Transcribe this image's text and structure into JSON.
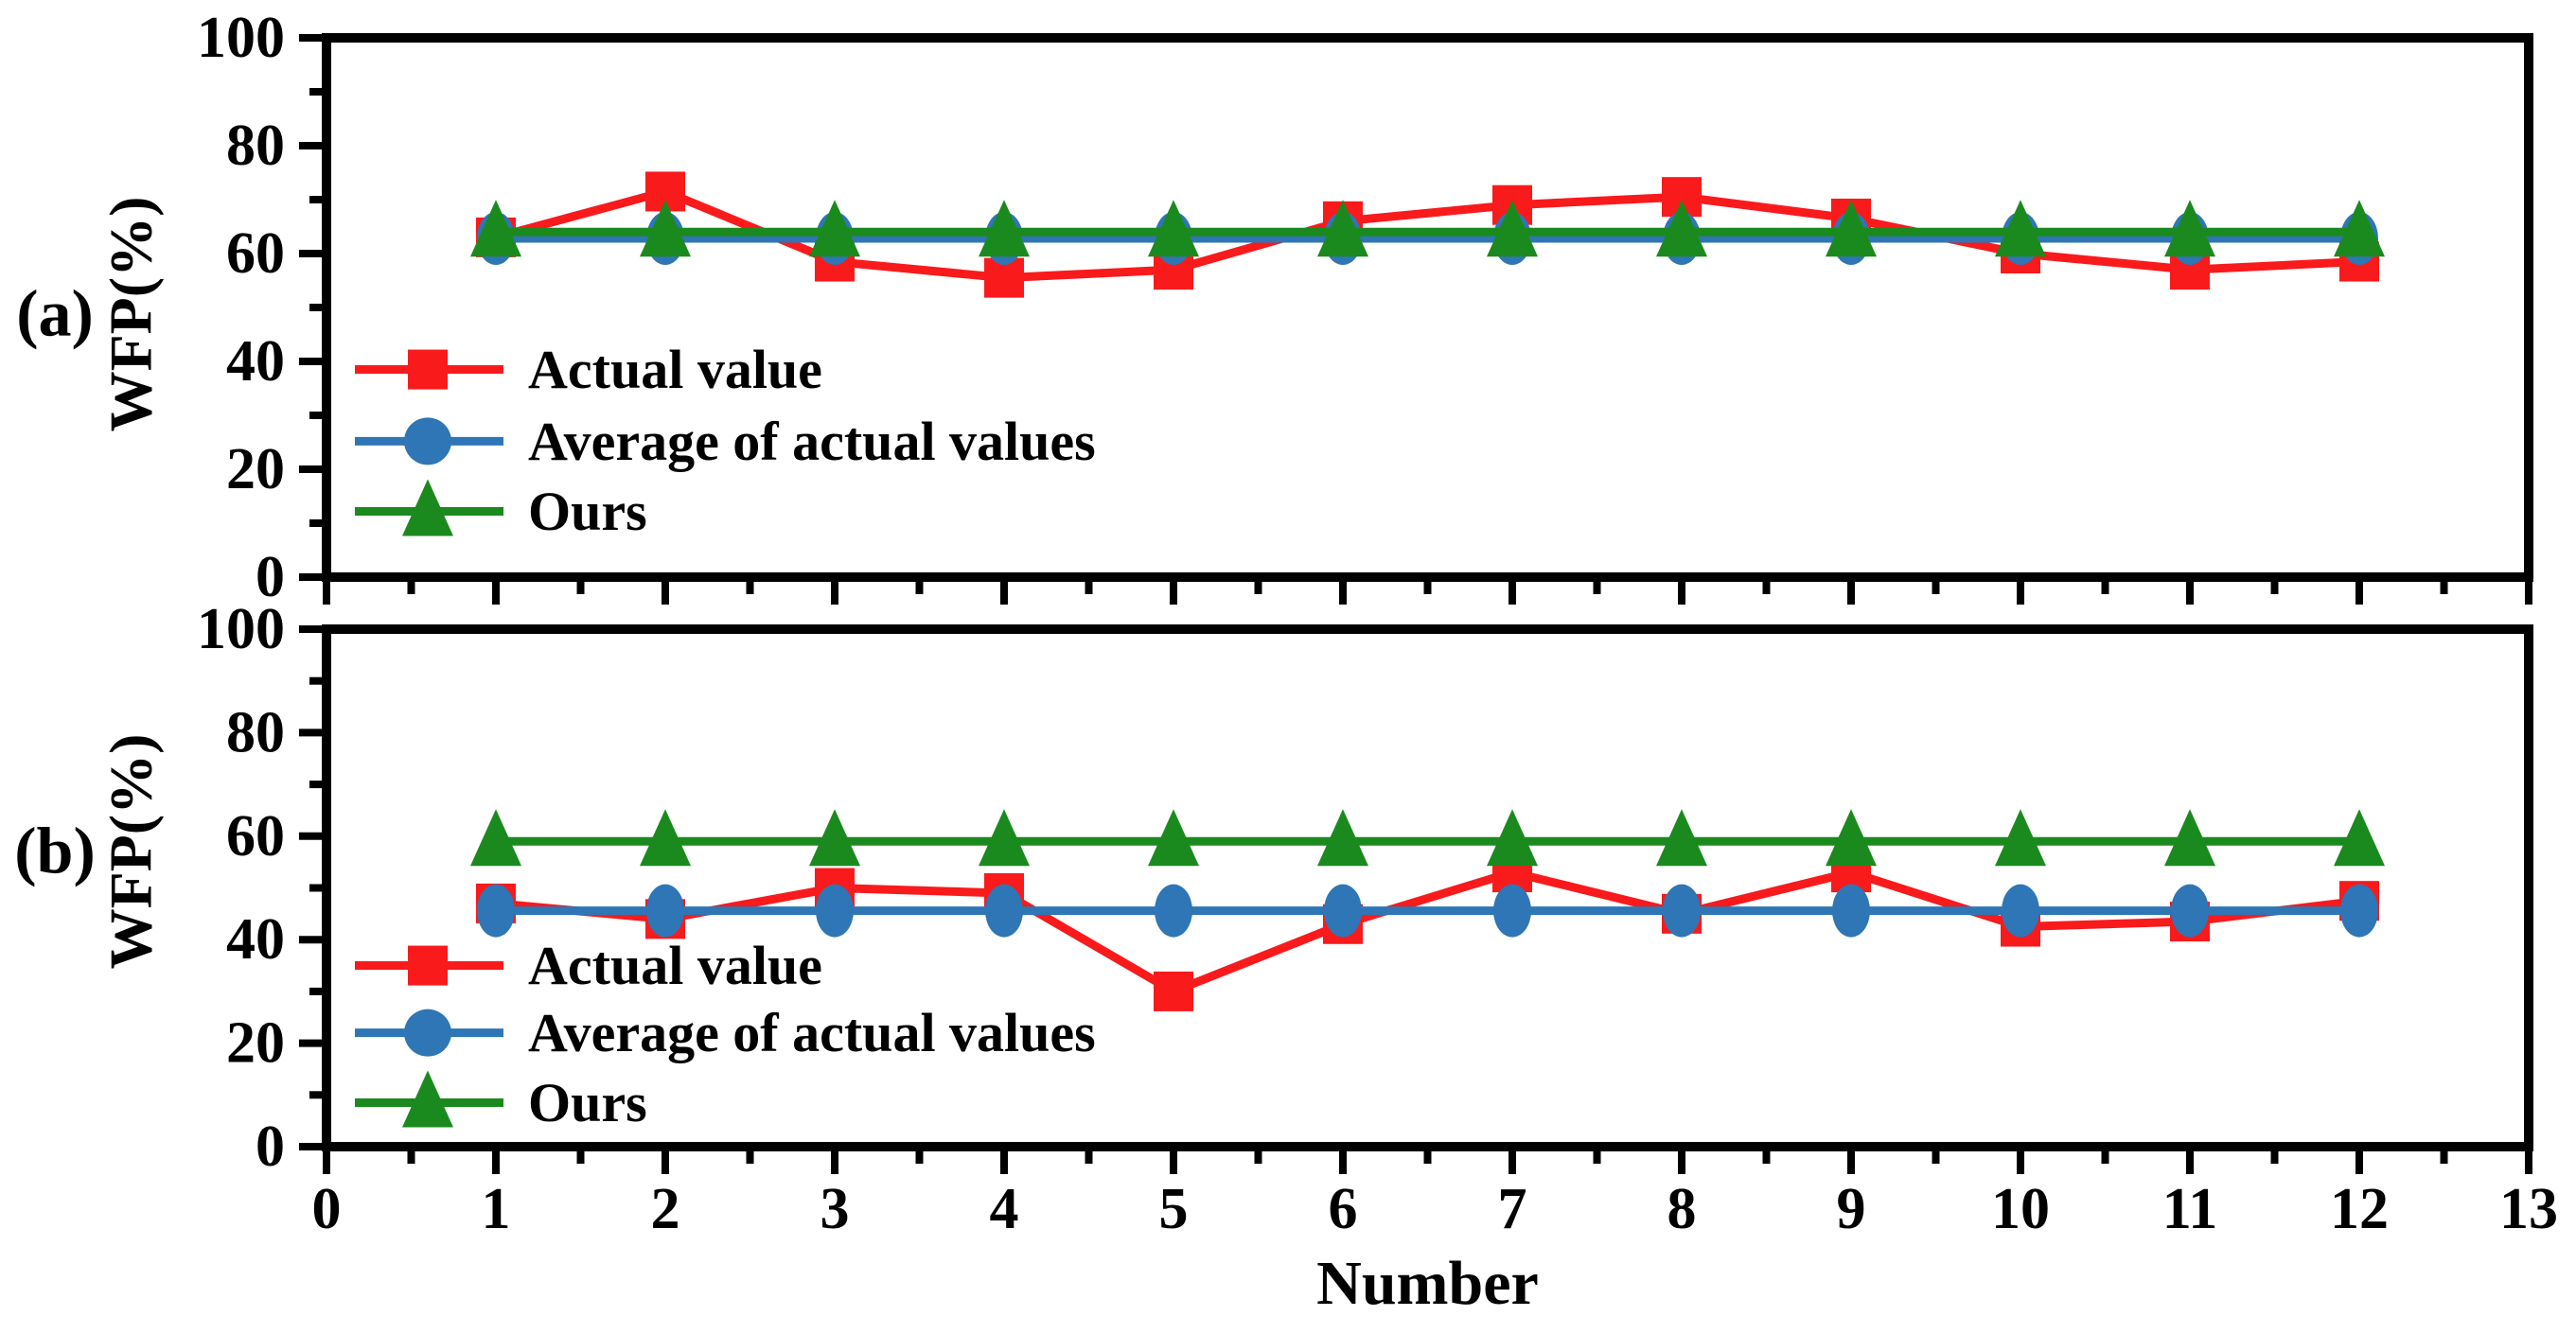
{
  "figure": {
    "xlabel": "Number",
    "ylabel": "WFP(%)",
    "panel_tags": [
      "(a)",
      "(b)"
    ],
    "background": "#ffffff"
  },
  "colors": {
    "actual": "#f91a1c",
    "average": "#2e76b5",
    "ours": "#1b8a1e",
    "axis": "#000000",
    "text": "#000000"
  },
  "chart_data": [
    {
      "type": "line",
      "panel": "(a)",
      "title": "",
      "xlabel": "Number",
      "ylabel": "WFP(%)",
      "xlim": [
        0,
        13
      ],
      "ylim": [
        0,
        100
      ],
      "xticks": [
        0,
        1,
        2,
        3,
        4,
        5,
        6,
        7,
        8,
        9,
        10,
        11,
        12,
        13
      ],
      "yticks": [
        0,
        20,
        40,
        60,
        80,
        100
      ],
      "x_minor_step": 0.5,
      "y_minor_step": 10,
      "grid": false,
      "legend_position": "lower left",
      "x": [
        1,
        2,
        3,
        4,
        5,
        6,
        7,
        8,
        9,
        10,
        11,
        12
      ],
      "series": [
        {
          "name": "Actual value",
          "marker": "square",
          "color_key": "actual",
          "values": [
            63,
            71.5,
            58.5,
            55.5,
            57,
            66,
            69,
            70.5,
            66.5,
            60,
            57,
            58.5
          ]
        },
        {
          "name": "Average of actual values",
          "marker": "circle",
          "color_key": "average",
          "values": [
            62.8,
            62.8,
            62.8,
            62.8,
            62.8,
            62.8,
            62.8,
            62.8,
            62.8,
            62.8,
            62.8,
            62.8
          ]
        },
        {
          "name": "Ours",
          "marker": "triangle",
          "color_key": "ours",
          "values": [
            64,
            64,
            64,
            64,
            64,
            64,
            64,
            64,
            64,
            64,
            64,
            64
          ]
        }
      ]
    },
    {
      "type": "line",
      "panel": "(b)",
      "title": "",
      "xlabel": "Number",
      "ylabel": "WFP(%)",
      "xlim": [
        0,
        13
      ],
      "ylim": [
        0,
        100
      ],
      "xticks": [
        0,
        1,
        2,
        3,
        4,
        5,
        6,
        7,
        8,
        9,
        10,
        11,
        12,
        13
      ],
      "yticks": [
        0,
        20,
        40,
        60,
        80,
        100
      ],
      "x_minor_step": 0.5,
      "y_minor_step": 10,
      "grid": false,
      "legend_position": "lower left",
      "x": [
        1,
        2,
        3,
        4,
        5,
        6,
        7,
        8,
        9,
        10,
        11,
        12
      ],
      "series": [
        {
          "name": "Actual value",
          "marker": "square",
          "color_key": "actual",
          "values": [
            47,
            44,
            50,
            49,
            30,
            43,
            53,
            45,
            53,
            42.5,
            43.5,
            47.5
          ]
        },
        {
          "name": "Average of actual values",
          "marker": "circle",
          "color_key": "average",
          "values": [
            45.6,
            45.6,
            45.6,
            45.6,
            45.6,
            45.6,
            45.6,
            45.6,
            45.6,
            45.6,
            45.6,
            45.6
          ]
        },
        {
          "name": "Ours",
          "marker": "triangle",
          "color_key": "ours",
          "values": [
            59,
            59,
            59,
            59,
            59,
            59,
            59,
            59,
            59,
            59,
            59,
            59
          ]
        }
      ]
    }
  ]
}
